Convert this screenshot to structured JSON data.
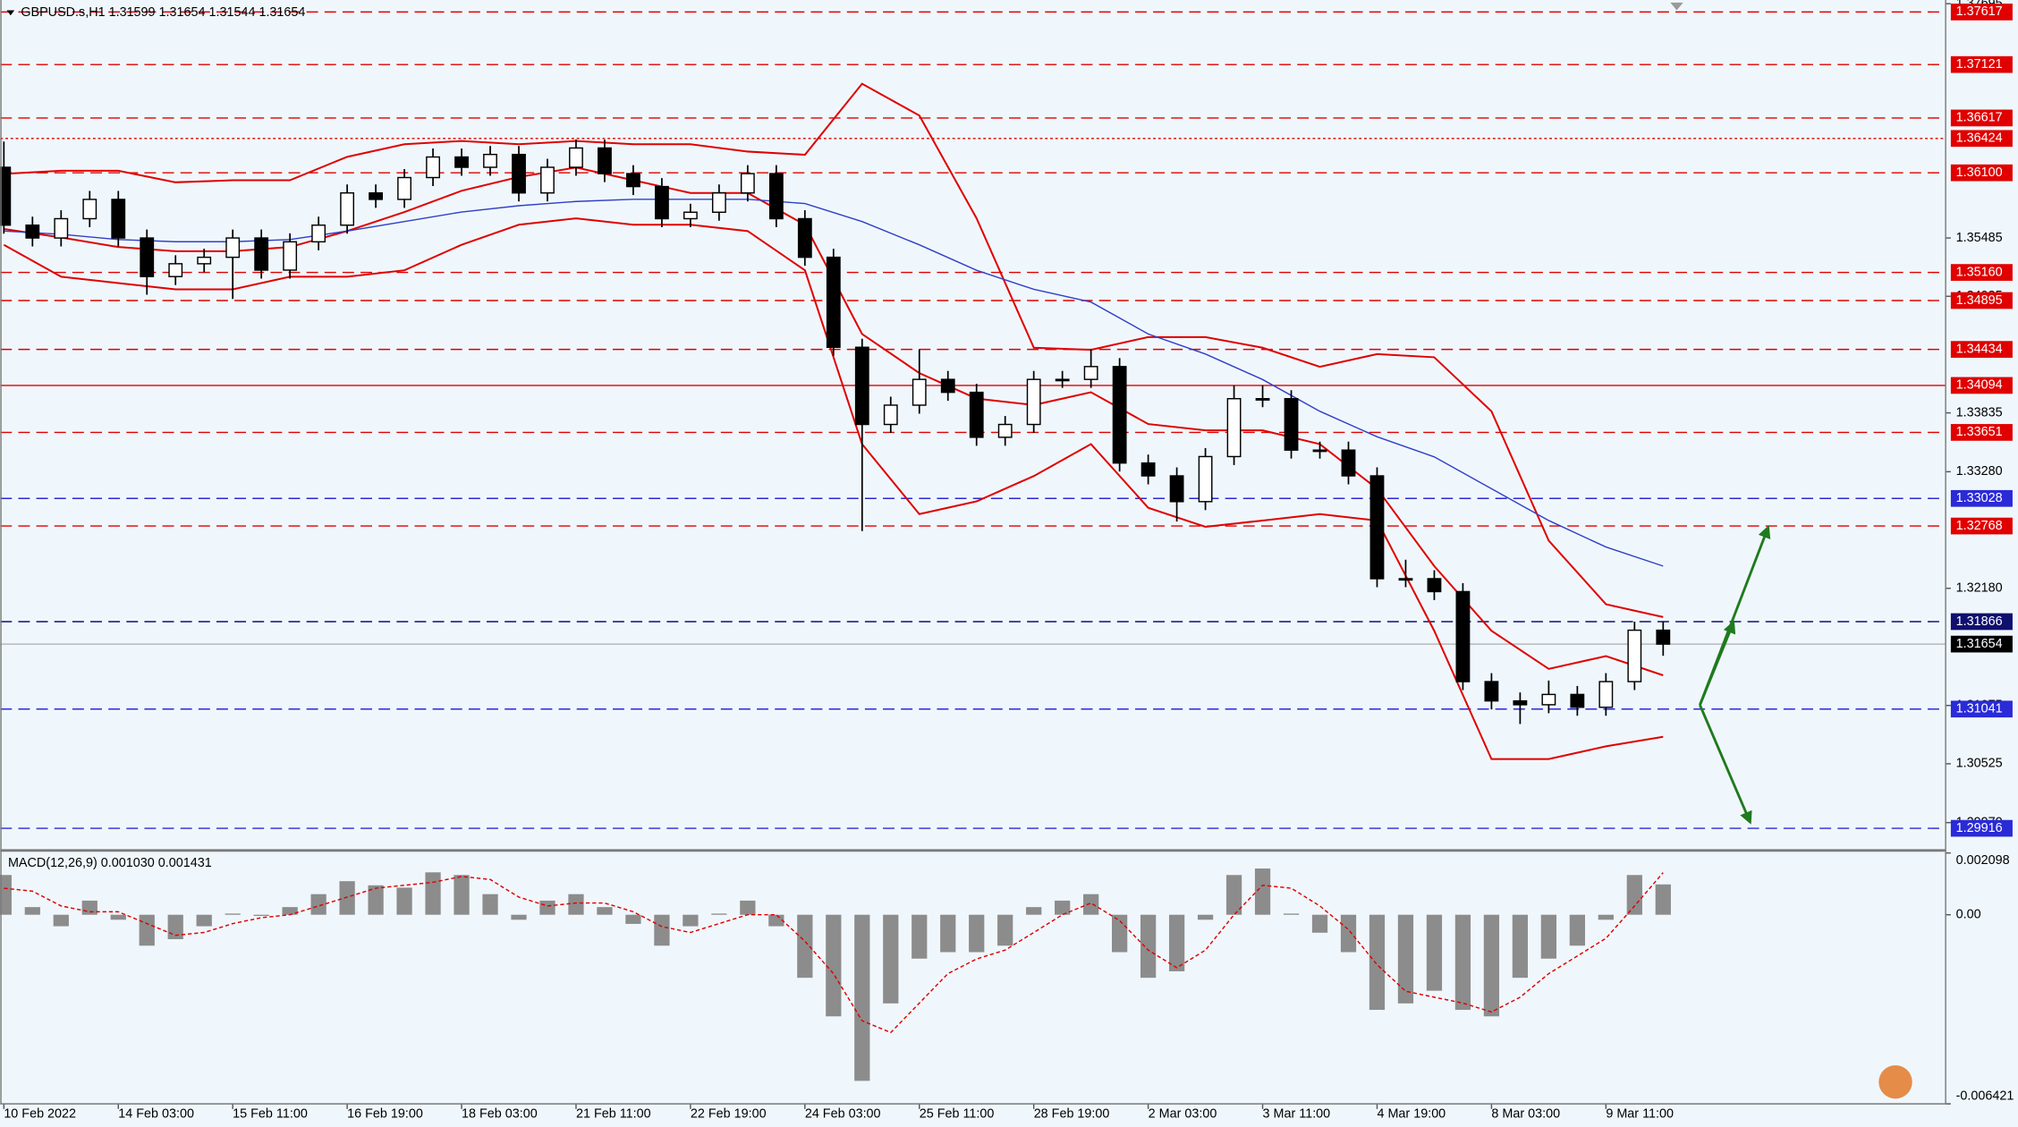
{
  "chart_data": [
    {
      "type": "candlestick",
      "title": "GBPUSD.s,H1  1.31599 1.31654 1.31544 1.31654",
      "x": [
        0,
        8,
        16,
        24,
        32,
        40,
        48,
        56,
        64,
        72,
        80,
        88,
        96,
        104,
        112,
        120,
        128,
        136,
        144,
        152,
        160,
        168,
        176,
        184,
        192,
        200,
        208,
        216,
        224,
        232,
        240,
        248,
        256,
        264,
        272,
        280,
        288,
        296,
        304,
        312,
        320,
        328,
        336,
        344,
        352,
        360,
        368,
        376,
        384,
        392,
        400,
        408,
        416,
        424,
        432,
        440,
        448,
        456,
        464
      ],
      "open": [
        1.36152,
        1.35606,
        1.35485,
        1.35667,
        1.35849,
        1.35485,
        1.35121,
        1.35242,
        1.35303,
        1.35485,
        1.35182,
        1.35449,
        1.35606,
        1.3591,
        1.35849,
        1.36055,
        1.36249,
        1.36152,
        1.36273,
        1.3591,
        1.36152,
        1.36334,
        1.36092,
        1.3597,
        1.35667,
        1.35728,
        1.3591,
        1.36092,
        1.35667,
        1.35303,
        1.34454,
        1.33726,
        1.33908,
        1.34151,
        1.34029,
        1.33605,
        1.33726,
        1.34151,
        1.34151,
        1.34272,
        1.33362,
        1.33241,
        1.32998,
        1.33423,
        1.33969,
        1.33969,
        1.33484,
        1.33484,
        1.33241,
        1.32271,
        1.32271,
        1.32149,
        1.313,
        1.31118,
        1.31082,
        1.31179,
        1.31058,
        1.313,
        1.31785
      ],
      "high": [
        1.36395,
        1.35686,
        1.35747,
        1.35929,
        1.35929,
        1.35565,
        1.35322,
        1.35383,
        1.35565,
        1.35565,
        1.35529,
        1.35686,
        1.3599,
        1.3599,
        1.36135,
        1.36329,
        1.36329,
        1.36353,
        1.36353,
        1.36232,
        1.36414,
        1.36414,
        1.36172,
        1.3605,
        1.35808,
        1.3599,
        1.36172,
        1.36172,
        1.35747,
        1.35383,
        1.34534,
        1.33988,
        1.34434,
        1.34231,
        1.34109,
        1.33806,
        1.34231,
        1.34231,
        1.34434,
        1.34352,
        1.33442,
        1.33321,
        1.33503,
        1.34094,
        1.34094,
        1.34049,
        1.33564,
        1.33564,
        1.33321,
        1.3245,
        1.32351,
        1.32229,
        1.3138,
        1.31198,
        1.3131,
        1.31259,
        1.3138,
        1.31866,
        1.31866
      ],
      "low": [
        1.35526,
        1.35405,
        1.35405,
        1.35587,
        1.35405,
        1.3495,
        1.35041,
        1.35162,
        1.3491,
        1.35102,
        1.35102,
        1.35369,
        1.35526,
        1.35769,
        1.35769,
        1.35975,
        1.36072,
        1.36072,
        1.3583,
        1.3583,
        1.36072,
        1.36012,
        1.3589,
        1.35587,
        1.35587,
        1.35648,
        1.3583,
        1.35587,
        1.35223,
        1.34374,
        1.3272,
        1.33646,
        1.33828,
        1.33949,
        1.33525,
        1.33525,
        1.33646,
        1.34071,
        1.34071,
        1.33282,
        1.33161,
        1.3281,
        1.32918,
        1.33343,
        1.33889,
        1.33404,
        1.33404,
        1.33161,
        1.32191,
        1.32191,
        1.32069,
        1.3122,
        1.31038,
        1.309,
        1.31002,
        1.30978,
        1.30978,
        1.3122,
        1.31544
      ],
      "close": [
        1.35606,
        1.35485,
        1.35667,
        1.35849,
        1.35485,
        1.35121,
        1.35242,
        1.35303,
        1.35485,
        1.35182,
        1.35449,
        1.35606,
        1.3591,
        1.35849,
        1.36055,
        1.36249,
        1.36152,
        1.36273,
        1.3591,
        1.36152,
        1.36334,
        1.36092,
        1.3597,
        1.35667,
        1.35728,
        1.3591,
        1.36092,
        1.35667,
        1.35303,
        1.34454,
        1.33726,
        1.33908,
        1.34151,
        1.34029,
        1.33605,
        1.33726,
        1.34151,
        1.34151,
        1.34272,
        1.33362,
        1.33241,
        1.32998,
        1.33423,
        1.33969,
        1.33969,
        1.33484,
        1.33484,
        1.33241,
        1.32271,
        1.32271,
        1.32149,
        1.313,
        1.31118,
        1.31082,
        1.31179,
        1.31058,
        1.313,
        1.31785,
        1.31654
      ],
      "up_color": "#ffffff",
      "down_color": "#000000",
      "wick_color": "#000000",
      "xlim": [
        -1,
        543
      ],
      "ylim": [
        1.2972,
        1.3773
      ],
      "xticks": [
        {
          "value": 0,
          "label": "10 Feb 2022"
        },
        {
          "value": 32,
          "label": "14 Feb 03:00"
        },
        {
          "value": 64,
          "label": "15 Feb 11:00"
        },
        {
          "value": 96,
          "label": "16 Feb 19:00"
        },
        {
          "value": 128,
          "label": "18 Feb 03:00"
        },
        {
          "value": 160,
          "label": "21 Feb 11:00"
        },
        {
          "value": 192,
          "label": "22 Feb 19:00"
        },
        {
          "value": 224,
          "label": "24 Feb 03:00"
        },
        {
          "value": 256,
          "label": "25 Feb 11:00"
        },
        {
          "value": 288,
          "label": "28 Feb 19:00"
        },
        {
          "value": 320,
          "label": "2 Mar 03:00"
        },
        {
          "value": 352,
          "label": "3 Mar 11:00"
        },
        {
          "value": 384,
          "label": "4 Mar 19:00"
        },
        {
          "value": 416,
          "label": "8 Mar 03:00"
        },
        {
          "value": 448,
          "label": "9 Mar 11:00"
        }
      ],
      "yticks": [
        1.37695,
        1.35485,
        1.34935,
        1.33835,
        {
          "value": 1.3328,
          "label": "1.33280"
        },
        {
          "value": 1.3218,
          "label": "1.32180"
        },
        1.31075,
        1.30525,
        {
          "value": 1.2997,
          "label": "1.29970"
        }
      ],
      "levels": [
        {
          "value": 1.37617,
          "label": "1.37617",
          "color": "#e00000",
          "style": "dashed"
        },
        {
          "value": 1.37121,
          "label": "1.37121",
          "color": "#e00000",
          "style": "dashed"
        },
        {
          "value": 1.36617,
          "label": "1.36617",
          "color": "#e00000",
          "style": "dashed"
        },
        {
          "value": 1.36424,
          "label": "1.36424",
          "color": "#e00000",
          "style": "dotted"
        },
        {
          "value": 1.361,
          "label": "1.36100",
          "color": "#e00000",
          "style": "dashed"
        },
        {
          "value": 1.3516,
          "label": "1.35160",
          "color": "#e00000",
          "style": "dashed"
        },
        {
          "value": 1.34895,
          "label": "1.34895",
          "color": "#e00000",
          "style": "dashed"
        },
        {
          "value": 1.34434,
          "label": "1.34434",
          "color": "#e00000",
          "style": "dashed"
        },
        {
          "value": 1.34094,
          "label": "1.34094",
          "color": "#e00000",
          "style": "solid"
        },
        {
          "value": 1.33651,
          "label": "1.33651",
          "color": "#e00000",
          "style": "dashed"
        },
        {
          "value": 1.33028,
          "label": "1.33028",
          "color": "#2a2ad8",
          "style": "dashed"
        },
        {
          "value": 1.32768,
          "label": "1.32768",
          "color": "#e00000",
          "style": "dashed"
        },
        {
          "value": 1.31866,
          "label": "1.31866",
          "color": "#10106e",
          "style": "dashed"
        },
        {
          "value": 1.31654,
          "label": "1.31654",
          "color": "#000000",
          "line_color": "#b8b8b8",
          "style": "solid"
        },
        {
          "value": 1.31041,
          "label": "1.31041",
          "color": "#2a2ad8",
          "style": "dashed"
        },
        {
          "value": 1.29916,
          "label": "1.29916",
          "color": "#2a2ad8",
          "style": "dashed"
        }
      ],
      "lines": {
        "x": [
          0,
          16,
          32,
          48,
          64,
          80,
          96,
          112,
          128,
          144,
          160,
          176,
          192,
          208,
          224,
          240,
          256,
          272,
          288,
          304,
          320,
          336,
          352,
          368,
          384,
          400,
          416,
          432,
          448,
          464
        ],
        "series": [
          {
            "color": "#e00000",
            "values": [
              1.3609,
              1.3612,
              1.3612,
              1.3601,
              1.3603,
              1.3603,
              1.3625,
              1.3637,
              1.364,
              1.3637,
              1.364,
              1.3637,
              1.3637,
              1.363,
              1.3627,
              1.3694,
              1.3664,
              1.3567,
              1.3445,
              1.3443,
              1.3455,
              1.3455,
              1.3445,
              1.3427,
              1.3439,
              1.3436,
              1.3385,
              1.3263,
              1.3203,
              1.3191
            ]
          },
          {
            "color": "#e00000",
            "values": [
              1.3557,
              1.3549,
              1.354,
              1.3536,
              1.3536,
              1.354,
              1.3555,
              1.3573,
              1.3593,
              1.3606,
              1.3615,
              1.3603,
              1.3591,
              1.3591,
              1.3561,
              1.3458,
              1.3421,
              1.3397,
              1.3391,
              1.3403,
              1.3373,
              1.3367,
              1.3367,
              1.3354,
              1.3312,
              1.3239,
              1.3178,
              1.3142,
              1.3154,
              1.3136
            ]
          },
          {
            "color": "#e00000",
            "values": [
              1.3542,
              1.3512,
              1.3506,
              1.35,
              1.35,
              1.3512,
              1.3512,
              1.3518,
              1.3542,
              1.3561,
              1.3567,
              1.3561,
              1.3561,
              1.3555,
              1.3518,
              1.3354,
              1.3288,
              1.33,
              1.3324,
              1.3354,
              1.3294,
              1.3276,
              1.3282,
              1.3288,
              1.3282,
              1.3178,
              1.3057,
              1.3057,
              1.3069,
              1.3078
            ]
          },
          {
            "color": "#3040c8",
            "values": [
              1.3555,
              1.3552,
              1.3547,
              1.3545,
              1.3545,
              1.3547,
              1.3555,
              1.3564,
              1.3573,
              1.3579,
              1.3583,
              1.3585,
              1.3585,
              1.3585,
              1.3581,
              1.3564,
              1.3542,
              1.3518,
              1.35,
              1.3488,
              1.3458,
              1.3439,
              1.3415,
              1.3385,
              1.3361,
              1.3342,
              1.3312,
              1.3282,
              1.3257,
              1.3239
            ]
          }
        ]
      }
    },
    {
      "type": "bar",
      "title": "MACD(12,26,9) 0.001030 0.001431",
      "x": [
        0,
        8,
        16,
        24,
        32,
        40,
        48,
        56,
        64,
        72,
        80,
        88,
        96,
        104,
        112,
        120,
        128,
        136,
        144,
        152,
        160,
        168,
        176,
        184,
        192,
        200,
        208,
        216,
        224,
        232,
        240,
        248,
        256,
        264,
        272,
        280,
        288,
        296,
        304,
        312,
        320,
        328,
        336,
        344,
        352,
        360,
        368,
        376,
        384,
        392,
        400,
        408,
        416,
        424,
        432,
        440,
        448,
        456,
        464
      ],
      "values": [
        0.00135,
        0.00026,
        -0.00039,
        0.00048,
        -0.00017,
        -0.00105,
        -0.00083,
        -0.00039,
        4e-05,
        -4e-05,
        0.00026,
        0.0007,
        0.00114,
        0.001,
        0.00092,
        0.00144,
        0.00135,
        0.0007,
        -0.00017,
        0.00048,
        0.0007,
        0.00026,
        -0.00031,
        -0.00105,
        -0.00039,
        4e-05,
        0.00048,
        -0.00039,
        -0.00214,
        -0.00345,
        -0.00564,
        -0.00301,
        -0.00149,
        -0.00127,
        -0.00127,
        -0.00105,
        0.00026,
        0.00048,
        0.0007,
        -0.00127,
        -0.00214,
        -0.00192,
        -0.00017,
        0.00135,
        0.00157,
        4e-05,
        -0.00061,
        -0.00127,
        -0.00323,
        -0.00301,
        -0.00258,
        -0.00323,
        -0.00345,
        -0.00214,
        -0.00149,
        -0.00105,
        -0.00017,
        0.00135,
        0.00103
      ],
      "color": "#8c8c8c",
      "signal": {
        "color": "#e00000",
        "values": [
          0.0009,
          0.0008,
          0.0003,
          0.0001,
          0.0001,
          -0.0003,
          -0.0007,
          -0.0006,
          -0.0003,
          -0.0001,
          0.0,
          0.0003,
          0.0006,
          0.0009,
          0.001,
          0.0011,
          0.0013,
          0.0012,
          0.0006,
          0.0003,
          0.0004,
          0.0004,
          0.0001,
          -0.0004,
          -0.0006,
          -0.0003,
          0.0,
          0.0,
          -0.0009,
          -0.002,
          -0.0036,
          -0.004,
          -0.003,
          -0.002,
          -0.0015,
          -0.0012,
          -0.0006,
          0.0,
          0.0004,
          -0.0002,
          -0.0012,
          -0.0018,
          -0.0012,
          0.0,
          0.001,
          0.0009,
          0.0003,
          -0.0005,
          -0.0017,
          -0.0026,
          -0.0028,
          -0.003,
          -0.0033,
          -0.0028,
          -0.002,
          -0.0014,
          -0.0008,
          0.0003,
          0.001431
        ]
      },
      "ylim": [
        -0.006421,
        0.002098
      ],
      "yticks": [
        0.002098,
        {
          "value": 0,
          "label": "0.00"
        },
        -0.006421
      ]
    }
  ]
}
